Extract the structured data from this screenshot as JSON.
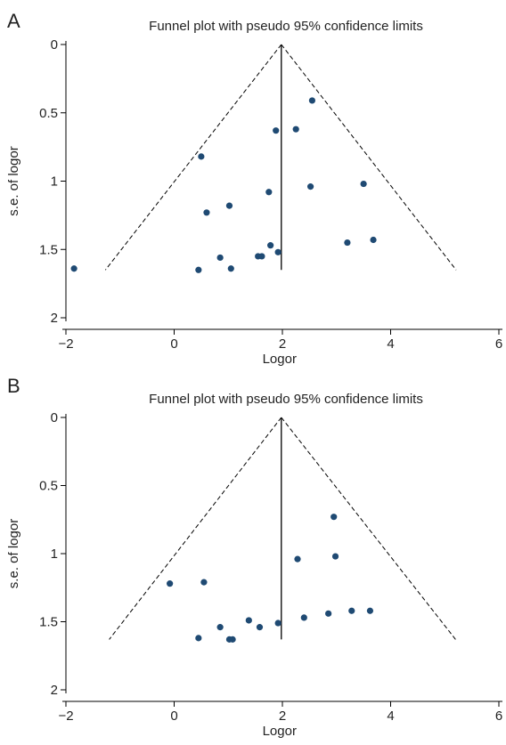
{
  "panels": [
    {
      "letter": "A"
    },
    {
      "letter": "B"
    }
  ],
  "colors": {
    "point": "#1f4a73",
    "line": "#000000"
  },
  "chart_data": [
    {
      "type": "scatter",
      "title": "Funnel plot with pseudo 95% confidence limits",
      "xlabel": "Logor",
      "ylabel": "s.e. of logor",
      "xlim": [
        -2,
        6
      ],
      "ylim": [
        0,
        2
      ],
      "y_reversed": true,
      "xticks": [
        -2,
        0,
        2,
        4,
        6
      ],
      "yticks": [
        0,
        0.5,
        1,
        1.5,
        2
      ],
      "ytick_labels": [
        "0",
        "0.5",
        "1",
        "1.5",
        "2"
      ],
      "pooled_estimate": 1.98,
      "pseudo_ci_lines": [
        {
          "from": [
            1.98,
            0
          ],
          "to": [
            -1.27,
            1.65
          ]
        },
        {
          "from": [
            1.98,
            0
          ],
          "to": [
            5.21,
            1.65
          ]
        }
      ],
      "points": [
        {
          "x": 2.55,
          "y": 0.41
        },
        {
          "x": 2.25,
          "y": 0.62
        },
        {
          "x": 1.88,
          "y": 0.63
        },
        {
          "x": 0.5,
          "y": 0.82
        },
        {
          "x": 3.5,
          "y": 1.02
        },
        {
          "x": 2.52,
          "y": 1.04
        },
        {
          "x": 1.75,
          "y": 1.08
        },
        {
          "x": 1.02,
          "y": 1.18
        },
        {
          "x": 0.6,
          "y": 1.23
        },
        {
          "x": 3.68,
          "y": 1.43
        },
        {
          "x": 3.2,
          "y": 1.45
        },
        {
          "x": 1.78,
          "y": 1.47
        },
        {
          "x": 1.92,
          "y": 1.52
        },
        {
          "x": 1.55,
          "y": 1.55
        },
        {
          "x": 1.62,
          "y": 1.55
        },
        {
          "x": 0.85,
          "y": 1.56
        },
        {
          "x": 0.45,
          "y": 1.65
        },
        {
          "x": 1.05,
          "y": 1.64
        },
        {
          "x": -1.85,
          "y": 1.64
        }
      ]
    },
    {
      "type": "scatter",
      "title": "Funnel plot with pseudo 95% confidence limits",
      "xlabel": "Logor",
      "ylabel": "s.e. of logor",
      "xlim": [
        -2,
        6
      ],
      "ylim": [
        0,
        2
      ],
      "y_reversed": true,
      "xticks": [
        -2,
        0,
        2,
        4,
        6
      ],
      "yticks": [
        0,
        0.5,
        1,
        1.5,
        2
      ],
      "ytick_labels": [
        "0",
        "0.5",
        "1",
        "1.5",
        "2"
      ],
      "pooled_estimate": 1.98,
      "pseudo_ci_lines": [
        {
          "from": [
            1.98,
            0
          ],
          "to": [
            -1.2,
            1.63
          ]
        },
        {
          "from": [
            1.98,
            0
          ],
          "to": [
            5.2,
            1.63
          ]
        }
      ],
      "points": [
        {
          "x": 2.95,
          "y": 0.73
        },
        {
          "x": 2.98,
          "y": 1.02
        },
        {
          "x": 2.28,
          "y": 1.04
        },
        {
          "x": 0.55,
          "y": 1.21
        },
        {
          "x": -0.08,
          "y": 1.22
        },
        {
          "x": 3.62,
          "y": 1.42
        },
        {
          "x": 3.28,
          "y": 1.42
        },
        {
          "x": 2.85,
          "y": 1.44
        },
        {
          "x": 2.4,
          "y": 1.47
        },
        {
          "x": 1.38,
          "y": 1.49
        },
        {
          "x": 1.92,
          "y": 1.51
        },
        {
          "x": 0.85,
          "y": 1.54
        },
        {
          "x": 1.58,
          "y": 1.54
        },
        {
          "x": 0.45,
          "y": 1.62
        },
        {
          "x": 1.02,
          "y": 1.63
        },
        {
          "x": 1.08,
          "y": 1.63
        }
      ]
    }
  ]
}
